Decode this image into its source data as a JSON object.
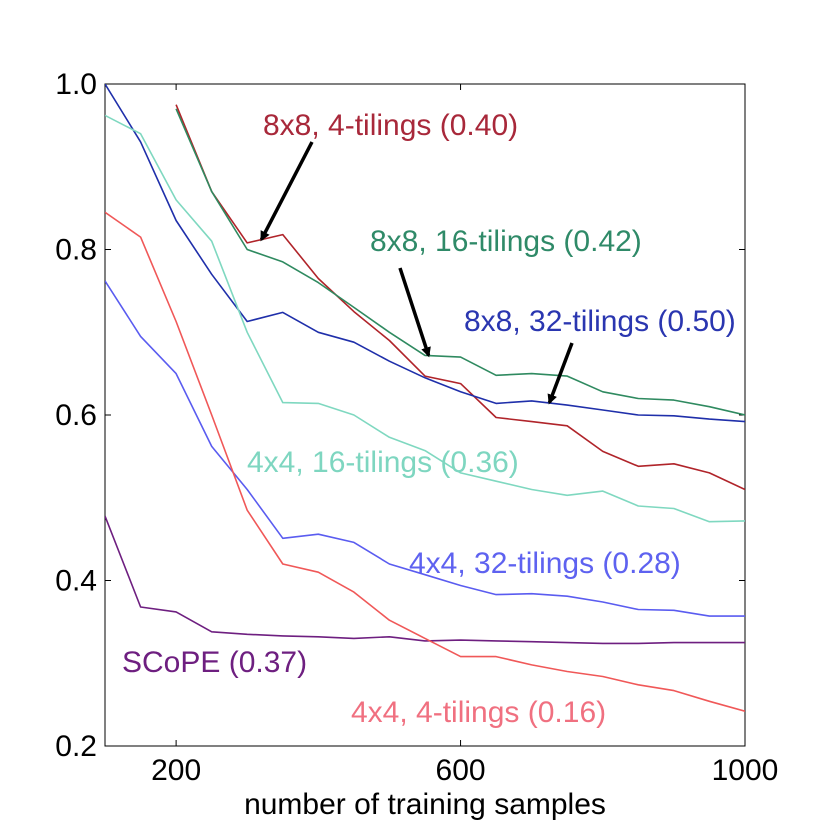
{
  "chart_data": {
    "type": "line",
    "title": "",
    "xlabel": "number of training samples",
    "ylabel": "",
    "xlim": [
      100,
      1000
    ],
    "ylim": [
      0.2,
      1.0
    ],
    "xticks": [
      200,
      600,
      1000
    ],
    "xtick_labels": [
      "200",
      "600",
      "1000"
    ],
    "yticks": [
      0.2,
      0.4,
      0.6,
      0.8,
      1.0
    ],
    "ytick_labels": [
      "0.2",
      "0.4",
      "0.6",
      "0.8",
      "1.0"
    ],
    "grid": false,
    "series": [
      {
        "name": "8x8, 4-tilings (0.40)",
        "color": "#b0242a",
        "label_color": "#a8283a",
        "x": [
          200,
          250,
          300,
          350,
          400,
          450,
          500,
          550,
          600,
          650,
          700,
          750,
          800,
          850,
          900,
          950,
          1000
        ],
        "y": [
          0.975,
          0.87,
          0.808,
          0.818,
          0.765,
          0.725,
          0.69,
          0.647,
          0.638,
          0.597,
          0.592,
          0.587,
          0.556,
          0.538,
          0.541,
          0.53,
          0.51
        ]
      },
      {
        "name": "8x8, 16-tilings (0.42)",
        "color": "#2f8a60",
        "label_color": "#2f8a68",
        "x": [
          200,
          250,
          300,
          350,
          400,
          450,
          500,
          550,
          600,
          650,
          700,
          750,
          800,
          850,
          900,
          950,
          1000
        ],
        "y": [
          0.97,
          0.87,
          0.8,
          0.785,
          0.76,
          0.73,
          0.7,
          0.672,
          0.67,
          0.648,
          0.65,
          0.647,
          0.628,
          0.62,
          0.618,
          0.61,
          0.6
        ]
      },
      {
        "name": "8x8, 32-tilings (0.50)",
        "color": "#1f2faa",
        "label_color": "#2a36b0",
        "x": [
          100,
          150,
          200,
          250,
          300,
          350,
          400,
          450,
          500,
          550,
          600,
          650,
          700,
          750,
          800,
          850,
          900,
          950,
          1000
        ],
        "y": [
          1.0,
          0.93,
          0.835,
          0.77,
          0.713,
          0.724,
          0.7,
          0.688,
          0.665,
          0.645,
          0.628,
          0.614,
          0.617,
          0.612,
          0.606,
          0.6,
          0.599,
          0.595,
          0.592
        ]
      },
      {
        "name": "4x4, 16-tilings (0.36)",
        "color": "#7fd8c0",
        "label_color": "#7ed6c0",
        "x": [
          100,
          150,
          200,
          250,
          300,
          350,
          400,
          450,
          500,
          550,
          600,
          650,
          700,
          750,
          800,
          850,
          900,
          950,
          1000
        ],
        "y": [
          0.962,
          0.94,
          0.86,
          0.81,
          0.7,
          0.615,
          0.614,
          0.6,
          0.573,
          0.557,
          0.53,
          0.52,
          0.51,
          0.503,
          0.508,
          0.49,
          0.487,
          0.471,
          0.472
        ]
      },
      {
        "name": "4x4, 32-tilings (0.28)",
        "color": "#5a5cf0",
        "label_color": "#5e62f0",
        "x": [
          100,
          150,
          200,
          250,
          300,
          350,
          400,
          450,
          500,
          550,
          600,
          650,
          700,
          750,
          800,
          850,
          900,
          950,
          1000
        ],
        "y": [
          0.762,
          0.695,
          0.65,
          0.562,
          0.51,
          0.451,
          0.456,
          0.446,
          0.42,
          0.407,
          0.394,
          0.383,
          0.384,
          0.381,
          0.374,
          0.365,
          0.364,
          0.357,
          0.357
        ]
      },
      {
        "name": "SCoPE (0.37)",
        "color": "#6e1f80",
        "label_color": "#6e1f80",
        "x": [
          100,
          150,
          200,
          250,
          300,
          350,
          400,
          450,
          500,
          550,
          600,
          650,
          700,
          750,
          800,
          850,
          900,
          950,
          1000
        ],
        "y": [
          0.478,
          0.368,
          0.362,
          0.338,
          0.335,
          0.333,
          0.332,
          0.33,
          0.332,
          0.327,
          0.328,
          0.327,
          0.326,
          0.325,
          0.324,
          0.324,
          0.325,
          0.325,
          0.325
        ]
      },
      {
        "name": "4x4, 4-tilings (0.16)",
        "color": "#f05858",
        "label_color": "#f07080",
        "x": [
          100,
          150,
          200,
          250,
          300,
          350,
          400,
          450,
          500,
          550,
          600,
          650,
          700,
          750,
          800,
          850,
          900,
          950,
          1000
        ],
        "y": [
          0.845,
          0.815,
          0.713,
          0.6,
          0.485,
          0.42,
          0.41,
          0.386,
          0.352,
          0.33,
          0.308,
          0.308,
          0.298,
          0.29,
          0.284,
          0.274,
          0.267,
          0.254,
          0.242
        ]
      }
    ],
    "annotations": [
      {
        "target_series": "8x8, 4-tilings (0.40)",
        "x": 320,
        "y": 0.812
      },
      {
        "target_series": "8x8, 16-tilings (0.42)",
        "x": 555,
        "y": 0.672
      },
      {
        "target_series": "8x8, 32-tilings (0.50)",
        "x": 725,
        "y": 0.615
      }
    ]
  }
}
